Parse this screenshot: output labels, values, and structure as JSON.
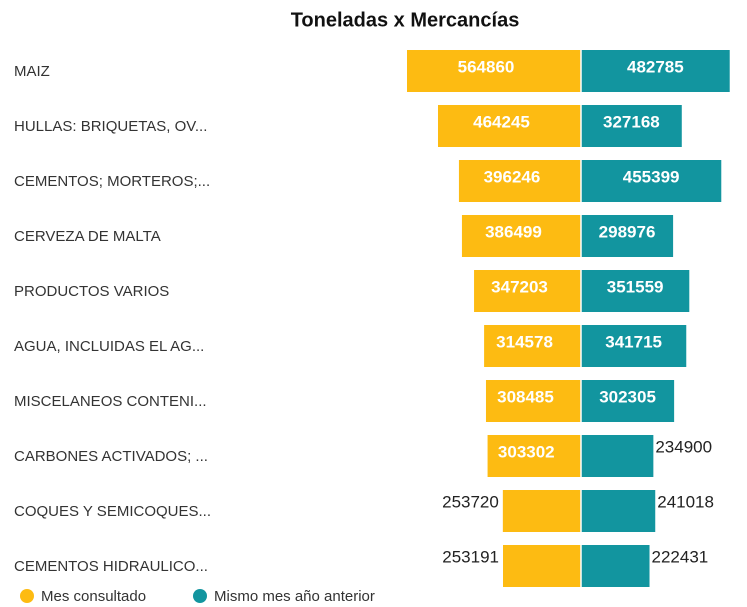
{
  "chart_data": {
    "type": "butterfly-bar",
    "title": "Toneladas x Mercancías",
    "categories": [
      "MAIZ",
      "HULLAS: BRIQUETAS, OV...",
      "CEMENTOS; MORTEROS;...",
      "CERVEZA DE MALTA",
      "PRODUCTOS VARIOS",
      "AGUA, INCLUIDAS EL AG...",
      "MISCELANEOS CONTENI...",
      "CARBONES ACTIVADOS; ...",
      "COQUES Y SEMICOQUES...",
      "CEMENTOS HIDRAULICO..."
    ],
    "series": [
      {
        "name": "Mes consultado",
        "color": "#FDBB12",
        "values": [
          564860,
          464245,
          396246,
          386499,
          347203,
          314578,
          308485,
          303302,
          253720,
          253191
        ]
      },
      {
        "name": "Mismo mes año anterior",
        "color": "#12959F",
        "values": [
          482785,
          327168,
          455399,
          298976,
          351559,
          341715,
          302305,
          234900,
          241018,
          222431
        ]
      }
    ],
    "legend": "bottom-left"
  }
}
